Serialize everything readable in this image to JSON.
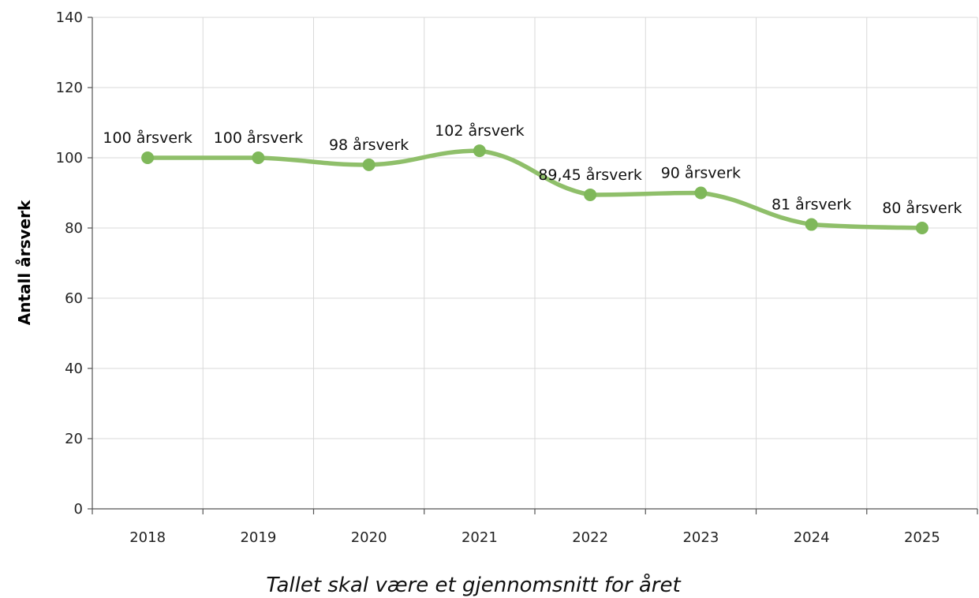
{
  "chart_data": {
    "type": "line",
    "title": "",
    "xlabel": "Tallet skal være et gjennomsnitt for året",
    "ylabel": "Antall årsverk",
    "categories": [
      "2018",
      "2019",
      "2020",
      "2021",
      "2022",
      "2023",
      "2024",
      "2025"
    ],
    "series": [
      {
        "values": [
          100,
          100,
          98,
          102,
          89.45,
          90,
          81,
          80
        ],
        "data_labels": [
          "100 årsverk",
          "100 årsverk",
          "98 årsverk",
          "102 årsverk",
          "89,45 årsverk",
          "90 årsverk",
          "81 årsverk",
          "80 årsverk"
        ],
        "color": "#8fbf6a",
        "marker_color": "#7fb85a"
      }
    ],
    "yticks": [
      "0",
      "20",
      "40",
      "60",
      "80",
      "100",
      "120",
      "140"
    ],
    "ylim": [
      0,
      140
    ],
    "grid": true,
    "line_style": "smooth"
  }
}
